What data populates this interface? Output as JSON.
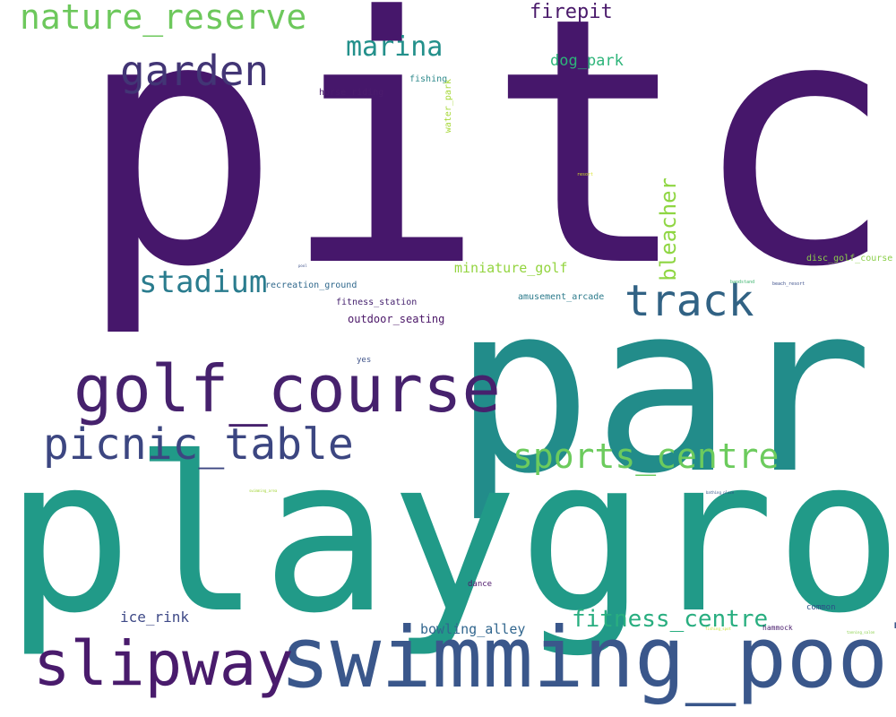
{
  "words": [
    {
      "id": "pitch",
      "text": "pitch",
      "color": "#46176b"
    },
    {
      "id": "park",
      "text": "park",
      "color": "#228c8a"
    },
    {
      "id": "playground",
      "text": "playground",
      "color": "#219a88"
    },
    {
      "id": "swimming_pool",
      "text": "swimming_pool",
      "color": "#3a578b"
    },
    {
      "id": "golf_course",
      "text": "golf_course",
      "color": "#46216d"
    },
    {
      "id": "slipway",
      "text": "slipway",
      "color": "#491b6c"
    },
    {
      "id": "picnic_table",
      "text": "picnic_table",
      "color": "#3c4681"
    },
    {
      "id": "track",
      "text": "track",
      "color": "#316284"
    },
    {
      "id": "garden",
      "text": "garden",
      "color": "#423575"
    },
    {
      "id": "nature_reserve",
      "text": "nature_reserve",
      "color": "#6dc85c"
    },
    {
      "id": "sports_centre",
      "text": "sports_centre",
      "color": "#6ccb5d"
    },
    {
      "id": "stadium",
      "text": "stadium",
      "color": "#2a7c8e"
    },
    {
      "id": "marina",
      "text": "marina",
      "color": "#23908b"
    },
    {
      "id": "fitness_centre",
      "text": "fitness_centre",
      "color": "#29ae80"
    },
    {
      "id": "bleacher",
      "text": "bleacher",
      "color": "#8fd643"
    },
    {
      "id": "firepit",
      "text": "firepit",
      "color": "#4a1a6b"
    },
    {
      "id": "dog_park",
      "text": "dog_park",
      "color": "#2db47a"
    },
    {
      "id": "ice_rink",
      "text": "ice_rink",
      "color": "#3f4a87"
    },
    {
      "id": "bowling_alley",
      "text": "bowling_alley",
      "color": "#31668e"
    },
    {
      "id": "miniature_golf",
      "text": "miniature_golf",
      "color": "#93d43f"
    },
    {
      "id": "outdoor_seating",
      "text": "outdoor_seating",
      "color": "#4b1768"
    },
    {
      "id": "disc_golf_course",
      "text": "disc_golf_course",
      "color": "#8ccf4b"
    },
    {
      "id": "recreation_ground",
      "text": "recreation_ground",
      "color": "#31698d"
    },
    {
      "id": "fitness_station",
      "text": "fitness_station",
      "color": "#45216e"
    },
    {
      "id": "amusement_arcade",
      "text": "amusement_arcade",
      "color": "#2d7b8c"
    },
    {
      "id": "fishing",
      "text": "fishing",
      "color": "#2f8a8c"
    },
    {
      "id": "horse_riding",
      "text": "horse_riding",
      "color": "#4b1c6d"
    },
    {
      "id": "water_park",
      "text": "water_park",
      "color": "#a7d83a"
    },
    {
      "id": "dance",
      "text": "dance",
      "color": "#4d176b"
    },
    {
      "id": "yes",
      "text": "yes",
      "color": "#3f5389"
    },
    {
      "id": "common",
      "text": "common",
      "color": "#2c4f86"
    },
    {
      "id": "hammock",
      "text": "hammock",
      "color": "#4a1d6d"
    },
    {
      "id": "bandstand",
      "text": "bandstand",
      "color": "#3ab36c"
    },
    {
      "id": "beach_resort",
      "text": "beach_resort",
      "color": "#3a4d89"
    },
    {
      "id": "resort",
      "text": "resort",
      "color": "#d8e226"
    },
    {
      "id": "pool",
      "text": "pool",
      "color": "#3b4f88"
    },
    {
      "id": "swimming_area",
      "text": "swimming_area",
      "color": "#a4d53b"
    },
    {
      "id": "bathing_place",
      "text": "bathing_place",
      "color": "#2d4f87"
    },
    {
      "id": "fishing_spot",
      "text": "fishing_spot",
      "color": "#cde23a"
    },
    {
      "id": "tanning_salon",
      "text": "tanning_salon",
      "color": "#8bd04b"
    }
  ]
}
